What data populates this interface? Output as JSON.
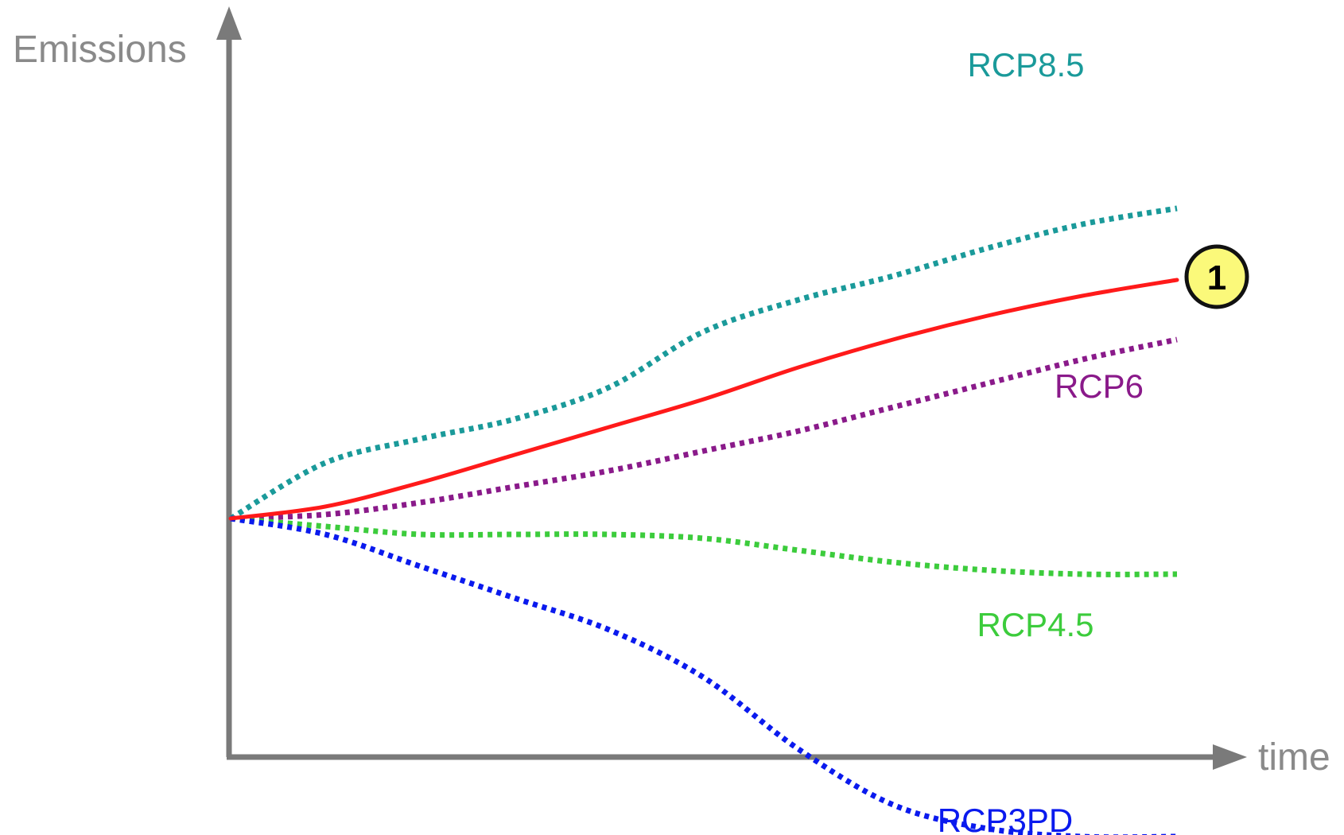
{
  "chart_data": {
    "type": "line",
    "xlabel": "time",
    "ylabel": "Emissions",
    "grid": false,
    "series": [
      {
        "name": "RCP8.5",
        "style": "dotted",
        "color": "#1a9a9a",
        "points": [
          [
            0,
            0
          ],
          [
            10,
            14
          ],
          [
            20,
            20
          ],
          [
            30,
            25
          ],
          [
            40,
            33
          ],
          [
            50,
            47
          ],
          [
            60,
            55
          ],
          [
            70,
            61
          ],
          [
            80,
            68
          ],
          [
            90,
            74
          ],
          [
            100,
            78
          ]
        ]
      },
      {
        "name": "",
        "style": "solid",
        "color": "#ff1a1a",
        "marker": "1",
        "points": [
          [
            0,
            0
          ],
          [
            10,
            3
          ],
          [
            20,
            9
          ],
          [
            30,
            16
          ],
          [
            40,
            23
          ],
          [
            50,
            30
          ],
          [
            60,
            38
          ],
          [
            70,
            45
          ],
          [
            80,
            51
          ],
          [
            90,
            56
          ],
          [
            100,
            60
          ]
        ]
      },
      {
        "name": "RCP6",
        "style": "dotted",
        "color": "#8a1a8a",
        "points": [
          [
            0,
            0
          ],
          [
            10,
            1
          ],
          [
            20,
            4
          ],
          [
            30,
            8
          ],
          [
            40,
            12
          ],
          [
            50,
            17
          ],
          [
            60,
            22
          ],
          [
            70,
            28
          ],
          [
            80,
            34
          ],
          [
            90,
            40
          ],
          [
            100,
            45
          ]
        ]
      },
      {
        "name": "RCP4.5",
        "style": "dotted",
        "color": "#3ccc3c",
        "points": [
          [
            0,
            0
          ],
          [
            10,
            -2
          ],
          [
            20,
            -4
          ],
          [
            30,
            -4
          ],
          [
            40,
            -4
          ],
          [
            50,
            -5
          ],
          [
            60,
            -8
          ],
          [
            70,
            -11
          ],
          [
            80,
            -13
          ],
          [
            90,
            -14
          ],
          [
            100,
            -14
          ]
        ]
      },
      {
        "name": "RCP3PD",
        "style": "dotted",
        "color": "#0a1aee",
        "points": [
          [
            0,
            0
          ],
          [
            10,
            -4
          ],
          [
            20,
            -12
          ],
          [
            30,
            -20
          ],
          [
            40,
            -28
          ],
          [
            50,
            -40
          ],
          [
            60,
            -58
          ],
          [
            70,
            -72
          ],
          [
            80,
            -78
          ],
          [
            90,
            -80
          ],
          [
            100,
            -80
          ]
        ]
      }
    ],
    "xlim": [
      0,
      100
    ],
    "ylim": [
      -100,
      100
    ]
  }
}
